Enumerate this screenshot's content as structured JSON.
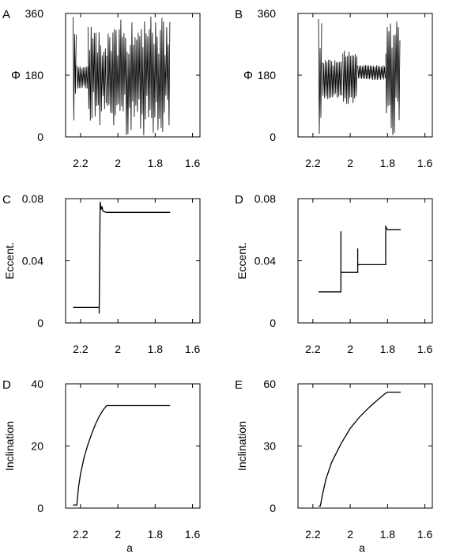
{
  "chart_data": [
    {
      "panel": "A",
      "type": "line",
      "ylabel": "Φ",
      "xlabel": "",
      "xlim": [
        2.28,
        1.56
      ],
      "ylim": [
        0,
        360
      ],
      "xticks": [
        "2.2",
        "2",
        "1.8",
        "1.6"
      ],
      "yticks": [
        "0",
        "180",
        "360"
      ],
      "series": [
        {
          "regime": "circulate",
          "x": [
            2.24,
            2.22
          ],
          "ylow": 10,
          "yhigh": 350
        },
        {
          "regime": "libration",
          "x": [
            2.22,
            2.16
          ],
          "ylow": 140,
          "yhigh": 210
        },
        {
          "regime": "circulate",
          "x": [
            2.16,
            2.06
          ],
          "ylow": 30,
          "yhigh": 340
        },
        {
          "regime": "circulate",
          "x": [
            2.06,
            1.72
          ],
          "ylow": 5,
          "yhigh": 355
        }
      ]
    },
    {
      "panel": "B",
      "type": "line",
      "ylabel": "Φ",
      "xlabel": "",
      "xlim": [
        2.28,
        1.56
      ],
      "ylim": [
        0,
        360
      ],
      "xticks": [
        "2.2",
        "2",
        "1.8",
        "1.6"
      ],
      "yticks": [
        "0",
        "180",
        "360"
      ],
      "series": [
        {
          "regime": "circulate",
          "x": [
            2.17,
            2.15
          ],
          "ylow": 0,
          "yhigh": 345
        },
        {
          "regime": "libration",
          "x": [
            2.15,
            2.04
          ],
          "ylow": 110,
          "yhigh": 225
        },
        {
          "regime": "libration",
          "x": [
            2.04,
            1.96
          ],
          "ylow": 95,
          "yhigh": 255
        },
        {
          "regime": "libration",
          "x": [
            1.96,
            1.81
          ],
          "ylow": 165,
          "yhigh": 210
        },
        {
          "regime": "circulate",
          "x": [
            1.81,
            1.73
          ],
          "ylow": 5,
          "yhigh": 355
        }
      ]
    },
    {
      "panel": "C",
      "type": "line",
      "ylabel": "Eccent.",
      "xlabel": "",
      "xlim": [
        2.28,
        1.56
      ],
      "ylim": [
        0,
        0.08
      ],
      "xticks": [
        "2.2",
        "2",
        "1.8",
        "1.6"
      ],
      "yticks": [
        "0",
        "0.04",
        "0.08"
      ],
      "x": [
        2.24,
        2.1,
        2.1,
        2.095,
        2.09,
        2.085,
        2.08,
        2.07,
        2.06,
        2.0,
        1.9,
        1.8,
        1.72
      ],
      "y": [
        0.01,
        0.01,
        0.006,
        0.078,
        0.073,
        0.075,
        0.072,
        0.0715,
        0.0712,
        0.0712,
        0.0712,
        0.0712,
        0.0712
      ]
    },
    {
      "panel": "D",
      "type": "line",
      "ylabel": "Eccent.",
      "xlabel": "",
      "xlim": [
        2.28,
        1.56
      ],
      "ylim": [
        0,
        0.08
      ],
      "xticks": [
        "2.2",
        "2",
        "1.8",
        "1.6"
      ],
      "yticks": [
        "0",
        "0.04",
        "0.08"
      ],
      "x": [
        2.17,
        2.05,
        2.05,
        2.05,
        2.045,
        2.03,
        1.96,
        1.96,
        1.96,
        1.955,
        1.94,
        1.81,
        1.81,
        1.8,
        1.79,
        1.73
      ],
      "y": [
        0.02,
        0.02,
        0.059,
        0.033,
        0.0325,
        0.0325,
        0.0325,
        0.048,
        0.037,
        0.0375,
        0.0375,
        0.0375,
        0.062,
        0.06,
        0.06,
        0.06
      ]
    },
    {
      "panel": "D",
      "type": "line",
      "ylabel": "Inclination",
      "xlabel": "a",
      "xlim": [
        2.28,
        1.56
      ],
      "ylim": [
        0,
        40
      ],
      "xticks": [
        "2.2",
        "2",
        "1.8",
        "1.6"
      ],
      "yticks": [
        "0",
        "20",
        "40"
      ],
      "x": [
        2.24,
        2.22,
        2.21,
        2.2,
        2.18,
        2.16,
        2.14,
        2.12,
        2.1,
        2.08,
        2.06,
        2.055,
        2.0,
        1.9,
        1.8,
        1.72
      ],
      "y": [
        1,
        1,
        7,
        11,
        16.5,
        20.5,
        24,
        27,
        29.5,
        31.5,
        33,
        33,
        33,
        33,
        33,
        33
      ]
    },
    {
      "panel": "E",
      "type": "line",
      "ylabel": "Inclination",
      "xlabel": "a",
      "xlim": [
        2.28,
        1.56
      ],
      "ylim": [
        0,
        60
      ],
      "xticks": [
        "2.2",
        "2",
        "1.8",
        "1.6"
      ],
      "yticks": [
        "0",
        "30",
        "60"
      ],
      "x": [
        2.17,
        2.16,
        2.15,
        2.13,
        2.1,
        2.05,
        2.0,
        1.95,
        1.9,
        1.85,
        1.81,
        1.8,
        1.73
      ],
      "y": [
        1,
        1,
        6,
        14,
        22,
        31,
        38.5,
        44,
        48.5,
        52.5,
        55.5,
        56,
        56
      ]
    }
  ]
}
